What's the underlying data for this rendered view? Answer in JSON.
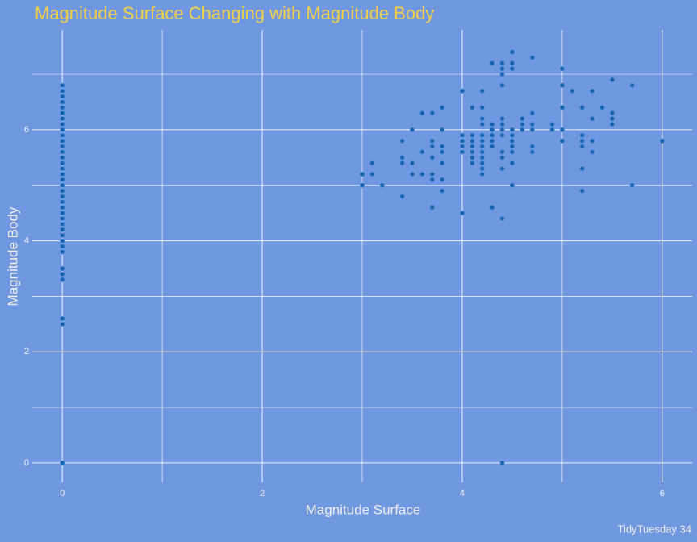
{
  "chart_data": {
    "type": "scatter",
    "title": "Magnitude Surface Changing with Magnitude Body",
    "x_label": "Magnitude Surface",
    "y_label": "Magnitude Body",
    "caption": "TidyTuesday 34",
    "color": "#1762ae",
    "grid": true,
    "xlim": [
      -0.3,
      6.3
    ],
    "ylim": [
      -0.35,
      7.8
    ],
    "xticks": [
      0,
      2,
      4,
      6
    ],
    "yticks": [
      0,
      2,
      4,
      6
    ],
    "xminor": [
      1,
      3,
      5
    ],
    "yminor": [
      1,
      3,
      5,
      7
    ],
    "x": [
      0,
      0,
      0,
      0,
      0,
      0,
      0,
      0,
      0,
      0,
      0,
      0,
      0,
      0,
      0,
      0,
      0,
      0,
      0,
      0,
      0,
      0,
      0,
      0,
      0,
      0,
      0,
      0,
      0,
      0,
      0,
      0,
      0,
      0,
      0,
      0,
      0,
      3.0,
      3.0,
      3.1,
      3.1,
      3.2,
      3.4,
      3.4,
      3.4,
      3.4,
      3.5,
      3.5,
      3.5,
      3.6,
      3.6,
      3.6,
      3.7,
      3.7,
      3.7,
      3.7,
      3.7,
      3.7,
      3.7,
      3.8,
      3.8,
      3.8,
      3.8,
      3.8,
      3.8,
      3.8,
      4.0,
      4.0,
      4.0,
      4.0,
      4.0,
      4.0,
      4.1,
      4.1,
      4.1,
      4.1,
      4.1,
      4.1,
      4.1,
      4.2,
      4.2,
      4.2,
      4.2,
      4.2,
      4.2,
      4.2,
      4.2,
      4.2,
      4.2,
      4.2,
      4.2,
      4.3,
      4.3,
      4.3,
      4.3,
      4.3,
      4.3,
      4.3,
      4.4,
      4.4,
      4.4,
      4.4,
      4.4,
      4.4,
      4.4,
      4.4,
      4.4,
      4.4,
      4.4,
      4.4,
      4.4,
      4.5,
      4.5,
      4.5,
      4.5,
      4.5,
      4.5,
      4.5,
      4.5,
      4.5,
      4.5,
      4.6,
      4.6,
      4.6,
      4.7,
      4.7,
      4.7,
      4.7,
      4.7,
      4.7,
      4.9,
      4.9,
      5.0,
      5.0,
      5.0,
      5.0,
      5.0,
      5.1,
      5.2,
      5.2,
      5.2,
      5.2,
      5.2,
      5.2,
      5.3,
      5.3,
      5.3,
      5.3,
      5.4,
      5.5,
      5.5,
      5.5,
      5.5,
      5.7,
      5.7,
      6.0
    ],
    "values": [
      0,
      2.5,
      2.6,
      3.3,
      3.4,
      3.5,
      3.8,
      3.9,
      4.0,
      4.1,
      4.2,
      4.3,
      4.4,
      4.5,
      4.6,
      4.7,
      4.8,
      4.9,
      5.0,
      5.1,
      5.2,
      5.3,
      5.4,
      5.5,
      5.6,
      5.7,
      5.8,
      5.9,
      6.0,
      6.1,
      6.2,
      6.3,
      6.4,
      6.5,
      6.6,
      6.7,
      6.8,
      5.2,
      5.0,
      5.4,
      5.2,
      5.0,
      5.8,
      5.5,
      5.4,
      4.8,
      6.0,
      5.4,
      5.2,
      6.3,
      5.6,
      5.2,
      6.3,
      5.8,
      5.7,
      5.5,
      5.2,
      5.1,
      4.6,
      6.4,
      6.0,
      5.7,
      5.6,
      5.4,
      5.1,
      4.9,
      6.7,
      5.9,
      5.8,
      5.7,
      5.6,
      4.5,
      6.4,
      5.9,
      5.8,
      5.7,
      5.6,
      5.5,
      5.4,
      6.7,
      6.4,
      6.2,
      6.1,
      5.9,
      5.8,
      5.7,
      5.6,
      5.5,
      5.4,
      5.3,
      5.2,
      7.2,
      6.1,
      6.0,
      5.9,
      5.8,
      5.7,
      4.6,
      7.2,
      7.1,
      7.0,
      6.8,
      6.2,
      6.1,
      6.0,
      5.9,
      5.6,
      5.5,
      5.3,
      4.4,
      0,
      7.4,
      7.2,
      7.1,
      6.0,
      5.9,
      5.8,
      5.7,
      5.6,
      5.4,
      5.0,
      6.2,
      6.1,
      6.0,
      7.3,
      6.3,
      6.1,
      6.0,
      5.7,
      5.6,
      6.1,
      6.0,
      7.1,
      6.8,
      6.4,
      6.0,
      5.8,
      6.7,
      6.4,
      5.9,
      5.8,
      5.7,
      5.3,
      4.9,
      6.7,
      6.2,
      5.8,
      5.6,
      6.4,
      6.9,
      6.3,
      6.2,
      6.1,
      6.8,
      5.0,
      5.8
    ]
  }
}
